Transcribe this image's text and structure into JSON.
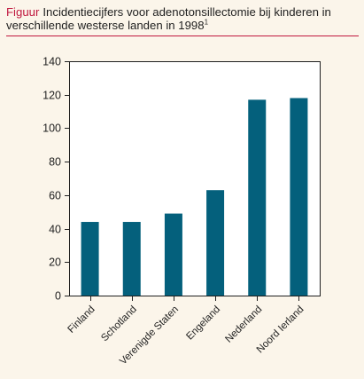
{
  "caption": {
    "label": "Figuur",
    "text": "Incidentiecijfers voor adenotonsillectomie bij kinderen in verschillende westerse landen in 1998",
    "footnote": "1"
  },
  "colors": {
    "accent": "#c0183f",
    "bar": "#04607c",
    "background": "#fbf5ea"
  },
  "chart_data": {
    "type": "bar",
    "title": "",
    "xlabel": "",
    "ylabel": "",
    "categories": [
      "Finland",
      "Schotland",
      "Verenigde Staten",
      "Engeland",
      "Nederland",
      "Noord Ierland"
    ],
    "values": [
      44,
      44,
      49,
      63,
      117,
      118
    ],
    "ylim": [
      0,
      140
    ],
    "yticks": [
      0,
      20,
      40,
      60,
      80,
      100,
      120,
      140
    ],
    "grid": false,
    "legend": "none"
  }
}
